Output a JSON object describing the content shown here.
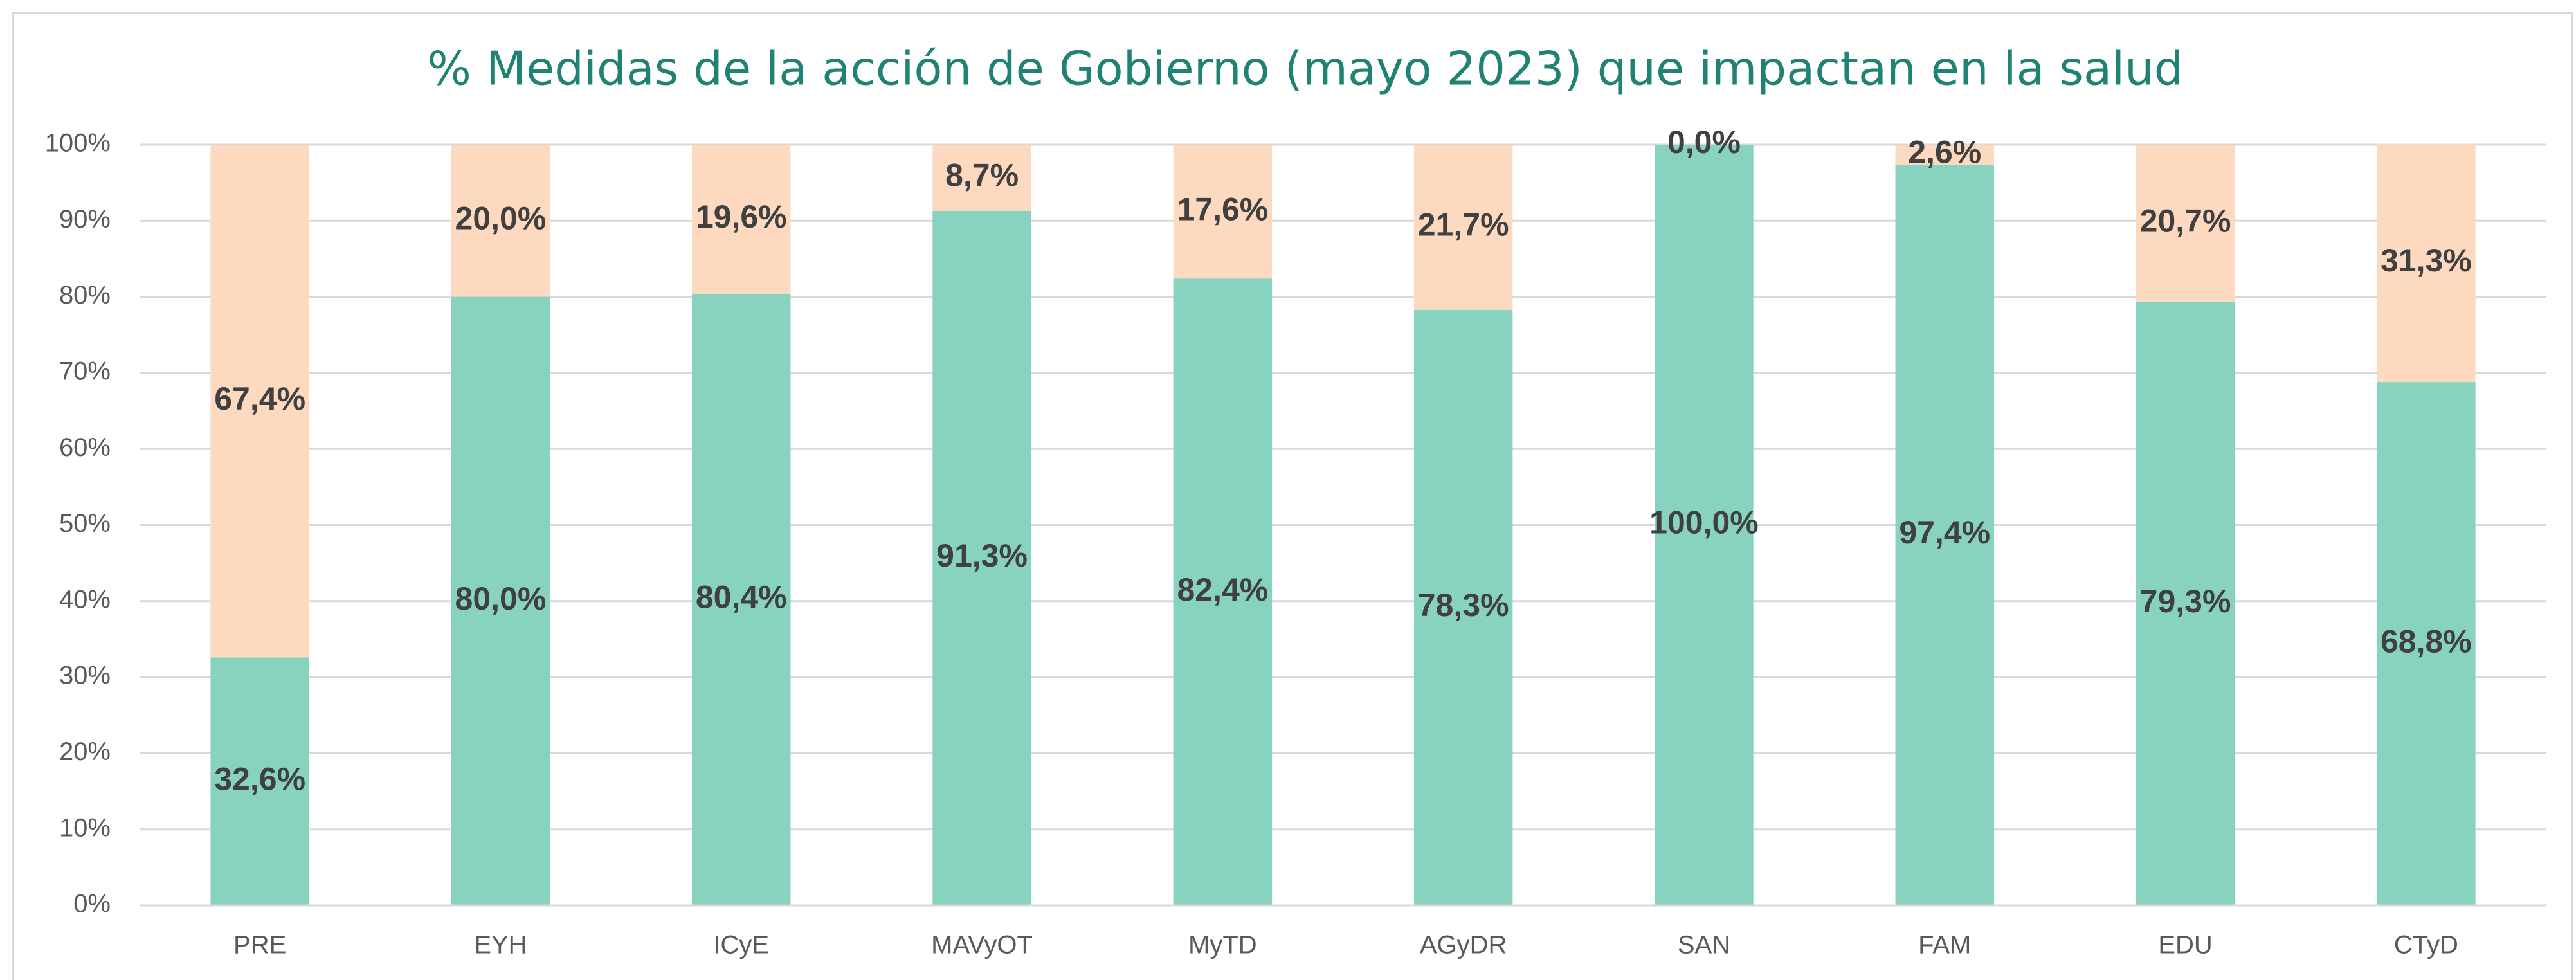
{
  "chart_data": {
    "type": "stacked_bar",
    "title": "% Medidas de la acción de Gobierno (mayo 2023) que impactan en la salud",
    "categories": [
      "PRE",
      "EYH",
      "ICyE",
      "MAVyOT",
      "MyTD",
      "AGyDR",
      "SAN",
      "FAM",
      "EDU",
      "CTyD"
    ],
    "series": [
      {
        "color": "#88d3bf",
        "values": [
          32.6,
          80.0,
          80.4,
          91.3,
          82.4,
          78.3,
          100.0,
          97.4,
          79.3,
          68.8
        ],
        "value_labels": [
          "32,6%",
          "80,0%",
          "80,4%",
          "91,3%",
          "82,4%",
          "78,3%",
          "100,0%",
          "97,4%",
          "79,3%",
          "68,8%"
        ]
      },
      {
        "color": "#fdd9bf",
        "values": [
          67.4,
          20.0,
          19.6,
          8.7,
          17.6,
          21.7,
          0.0,
          2.6,
          20.7,
          31.3
        ],
        "value_labels": [
          "67,4%",
          "20,0%",
          "19,6%",
          "8,7%",
          "17,6%",
          "21,7%",
          "0,0%",
          "2,6%",
          "20,7%",
          "31,3%"
        ]
      }
    ],
    "ylim": [
      0,
      100
    ],
    "yticks": [
      {
        "value": 0,
        "label": "0%"
      },
      {
        "value": 10,
        "label": "10%"
      },
      {
        "value": 20,
        "label": "20%"
      },
      {
        "value": 30,
        "label": "30%"
      },
      {
        "value": 40,
        "label": "40%"
      },
      {
        "value": 50,
        "label": "50%"
      },
      {
        "value": 60,
        "label": "60%"
      },
      {
        "value": 70,
        "label": "70%"
      },
      {
        "value": 80,
        "label": "80%"
      },
      {
        "value": 90,
        "label": "90%"
      },
      {
        "value": 100,
        "label": "100%"
      }
    ],
    "grid": true
  }
}
